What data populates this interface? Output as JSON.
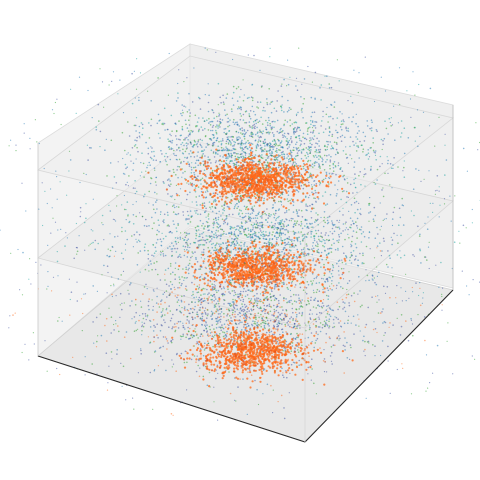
{
  "figure": {
    "kind": "3d-layered-point-cloud",
    "layers": [
      {
        "name": "",
        "dominant_colors": [
          "#1f77b4",
          "#2ca02c",
          "#ff7f0e"
        ]
      },
      {
        "name": "",
        "dominant_colors": [
          "#1f77b4",
          "#3b4fa0",
          "#ff7f0e"
        ]
      },
      {
        "name": "",
        "dominant_colors": [
          "#3b4fa0",
          "#1f77b4",
          "#ff7f0e"
        ]
      }
    ],
    "palette": {
      "blue": "#1f77b4",
      "navy": "#3b4fa0",
      "green": "#2ca02c",
      "teal": "#17a2a0",
      "orange": "#ff6a1a",
      "pane": "#eeeeee",
      "edge": "#222222"
    }
  }
}
